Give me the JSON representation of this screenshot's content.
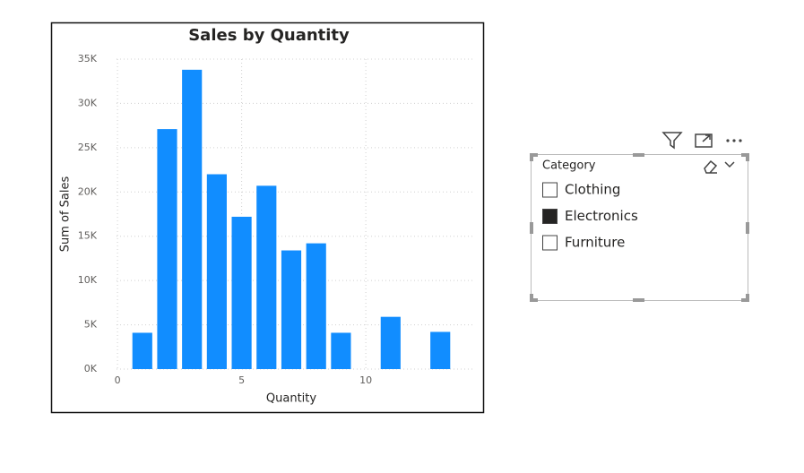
{
  "chart_data": {
    "type": "bar",
    "title": "Sales by Quantity",
    "x_label": "Quantity",
    "y_label": "Sum of Sales",
    "x": [
      1,
      2,
      3,
      4,
      5,
      6,
      7,
      8,
      9,
      11,
      13
    ],
    "values": [
      4100,
      27100,
      33800,
      22000,
      17200,
      20700,
      13400,
      14200,
      4100,
      5900,
      4200
    ],
    "color": "#118dff",
    "xlim": [
      -0.4,
      14.4
    ],
    "xticks": [
      0,
      5,
      10
    ],
    "ylim": [
      0,
      35000
    ],
    "yticks": [
      {
        "value": 0,
        "label": "0K"
      },
      {
        "value": 5000,
        "label": "5K"
      },
      {
        "value": 10000,
        "label": "10K"
      },
      {
        "value": 15000,
        "label": "15K"
      },
      {
        "value": 20000,
        "label": "20K"
      },
      {
        "value": 25000,
        "label": "25K"
      },
      {
        "value": 30000,
        "label": "30K"
      },
      {
        "value": 35000,
        "label": "35K"
      }
    ],
    "grid": true
  },
  "slicer": {
    "title": "Category",
    "items": [
      {
        "label": "Clothing",
        "checked": false
      },
      {
        "label": "Electronics",
        "checked": true
      },
      {
        "label": "Furniture",
        "checked": false
      }
    ]
  }
}
